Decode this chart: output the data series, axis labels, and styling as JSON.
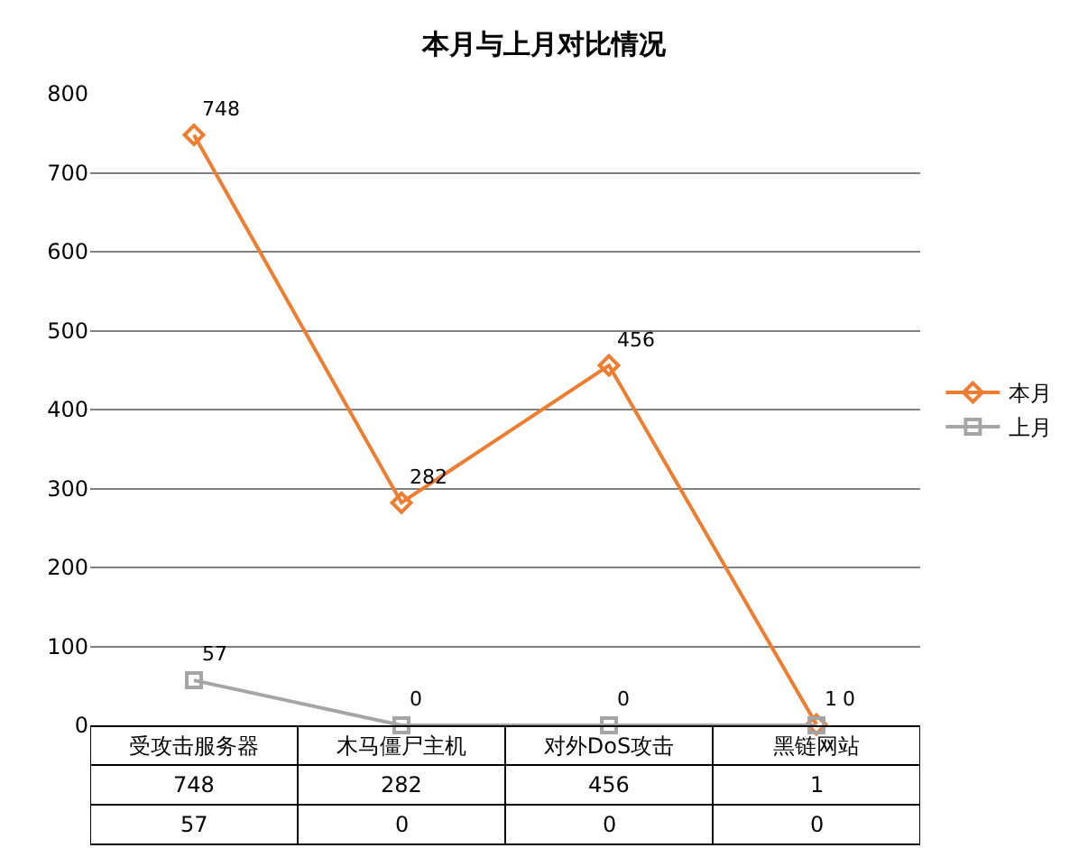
{
  "chart_data": {
    "type": "line",
    "title": "本月与上月对比情况",
    "categories": [
      "受攻击服务器",
      "木马僵尸主机",
      "对外DoS攻击",
      "黑链网站"
    ],
    "series": [
      {
        "name": "本月",
        "color": "#ed7d31",
        "marker": "diamond",
        "values": [
          748,
          282,
          456,
          1
        ]
      },
      {
        "name": "上月",
        "color": "#a5a5a5",
        "marker": "square",
        "values": [
          57,
          0,
          0,
          0
        ]
      }
    ],
    "annotations": [
      {
        "text": "748",
        "x": "受攻击服务器",
        "y": 748
      },
      {
        "text": "282",
        "x": "木马僵尸主机",
        "y": 282
      },
      {
        "text": "456",
        "x": "对外DoS攻击",
        "y": 456
      },
      {
        "text": "1",
        "x": "黑链网站",
        "y": 1
      },
      {
        "text": "57",
        "x": "受攻击服务器",
        "y": 57
      },
      {
        "text": "0",
        "x": "木马僵尸主机",
        "y": 0
      },
      {
        "text": "0",
        "x": "对外DoS攻击",
        "y": 0
      },
      {
        "text": "0",
        "x": "黑链网站",
        "y": 0
      }
    ],
    "ylim": [
      0,
      800
    ],
    "yticks": [
      0,
      100,
      200,
      300,
      400,
      500,
      600,
      700,
      800
    ],
    "grid": "y",
    "legend": "right",
    "data_labels": true
  }
}
